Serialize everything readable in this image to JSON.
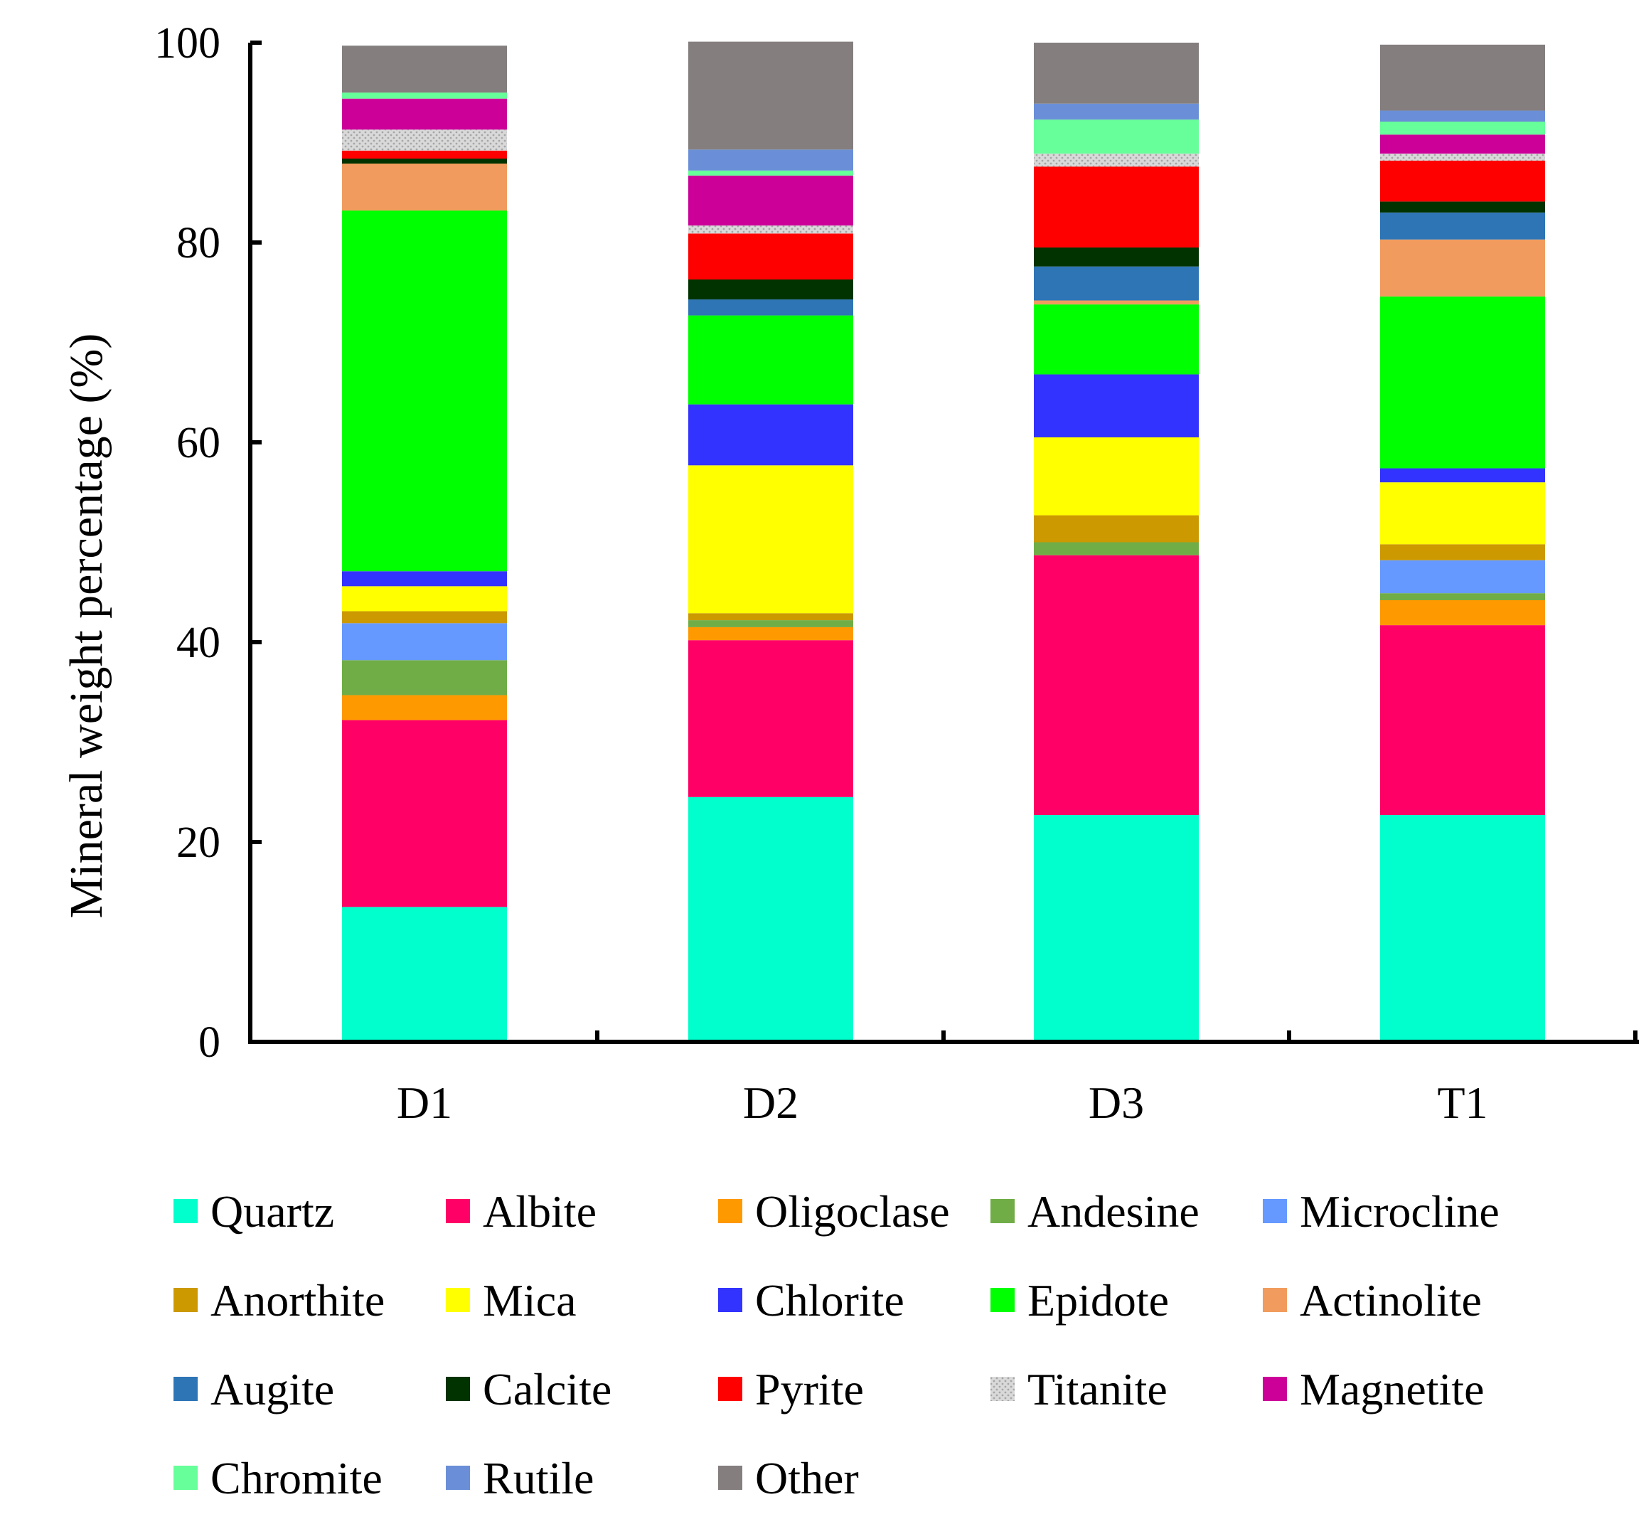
{
  "chart_data": {
    "type": "bar",
    "stacked": true,
    "title": "",
    "xlabel": "",
    "ylabel": "Mineral weight percentage (%)",
    "ylim": [
      0,
      100
    ],
    "yticks": [
      "0",
      "20",
      "40",
      "60",
      "80",
      "100"
    ],
    "categories": [
      "D1",
      "D2",
      "D3",
      "T1"
    ],
    "legend_position": "bottom",
    "series": [
      {
        "name": "Quartz",
        "color": "#00ffcc",
        "values": [
          13.5,
          24.5,
          22.7,
          22.7
        ]
      },
      {
        "name": "Albite",
        "color": "#ff0066",
        "values": [
          18.7,
          15.7,
          26.0,
          19.0
        ]
      },
      {
        "name": "Oligoclase",
        "color": "#ff9900",
        "values": [
          2.5,
          1.3,
          0.0,
          2.5
        ]
      },
      {
        "name": "Andesine",
        "color": "#70ad47",
        "values": [
          3.5,
          0.7,
          1.3,
          0.7
        ]
      },
      {
        "name": "Microcline",
        "color": "#6699ff",
        "values": [
          3.7,
          0.0,
          0.0,
          3.3
        ]
      },
      {
        "name": "Anorthite",
        "color": "#cc9900",
        "values": [
          1.2,
          0.7,
          2.7,
          1.6
        ]
      },
      {
        "name": "Mica",
        "color": "#ffff00",
        "values": [
          2.5,
          14.8,
          7.8,
          6.2
        ]
      },
      {
        "name": "Chlorite",
        "color": "#3333ff",
        "values": [
          1.5,
          6.1,
          6.3,
          1.4
        ]
      },
      {
        "name": "Epidote",
        "color": "#00ff00",
        "values": [
          36.1,
          8.9,
          7.0,
          17.2
        ]
      },
      {
        "name": "Actinolite",
        "color": "#f19c5e",
        "values": [
          4.7,
          0.0,
          0.4,
          5.7
        ]
      },
      {
        "name": "Augite",
        "color": "#2e75b6",
        "values": [
          0.0,
          1.6,
          3.4,
          2.7
        ]
      },
      {
        "name": "Calcite",
        "color": "#003300",
        "values": [
          0.5,
          2.0,
          1.9,
          1.1
        ]
      },
      {
        "name": "Pyrite",
        "color": "#ff0000",
        "values": [
          0.8,
          4.6,
          8.1,
          4.1
        ]
      },
      {
        "name": "Titanite",
        "color": "#c8c8c8",
        "values": [
          2.1,
          0.8,
          1.3,
          0.7
        ]
      },
      {
        "name": "Magnetite",
        "color": "#cc0099",
        "values": [
          3.1,
          5.0,
          0.0,
          1.9
        ]
      },
      {
        "name": "Chromite",
        "color": "#66ff99",
        "values": [
          0.6,
          0.5,
          3.4,
          1.3
        ]
      },
      {
        "name": "Rutile",
        "color": "#6a8fd8",
        "values": [
          0.0,
          2.1,
          1.6,
          1.1
        ]
      },
      {
        "name": "Other",
        "color": "#847e7e",
        "values": [
          4.7,
          10.8,
          6.1,
          6.6
        ]
      }
    ]
  }
}
